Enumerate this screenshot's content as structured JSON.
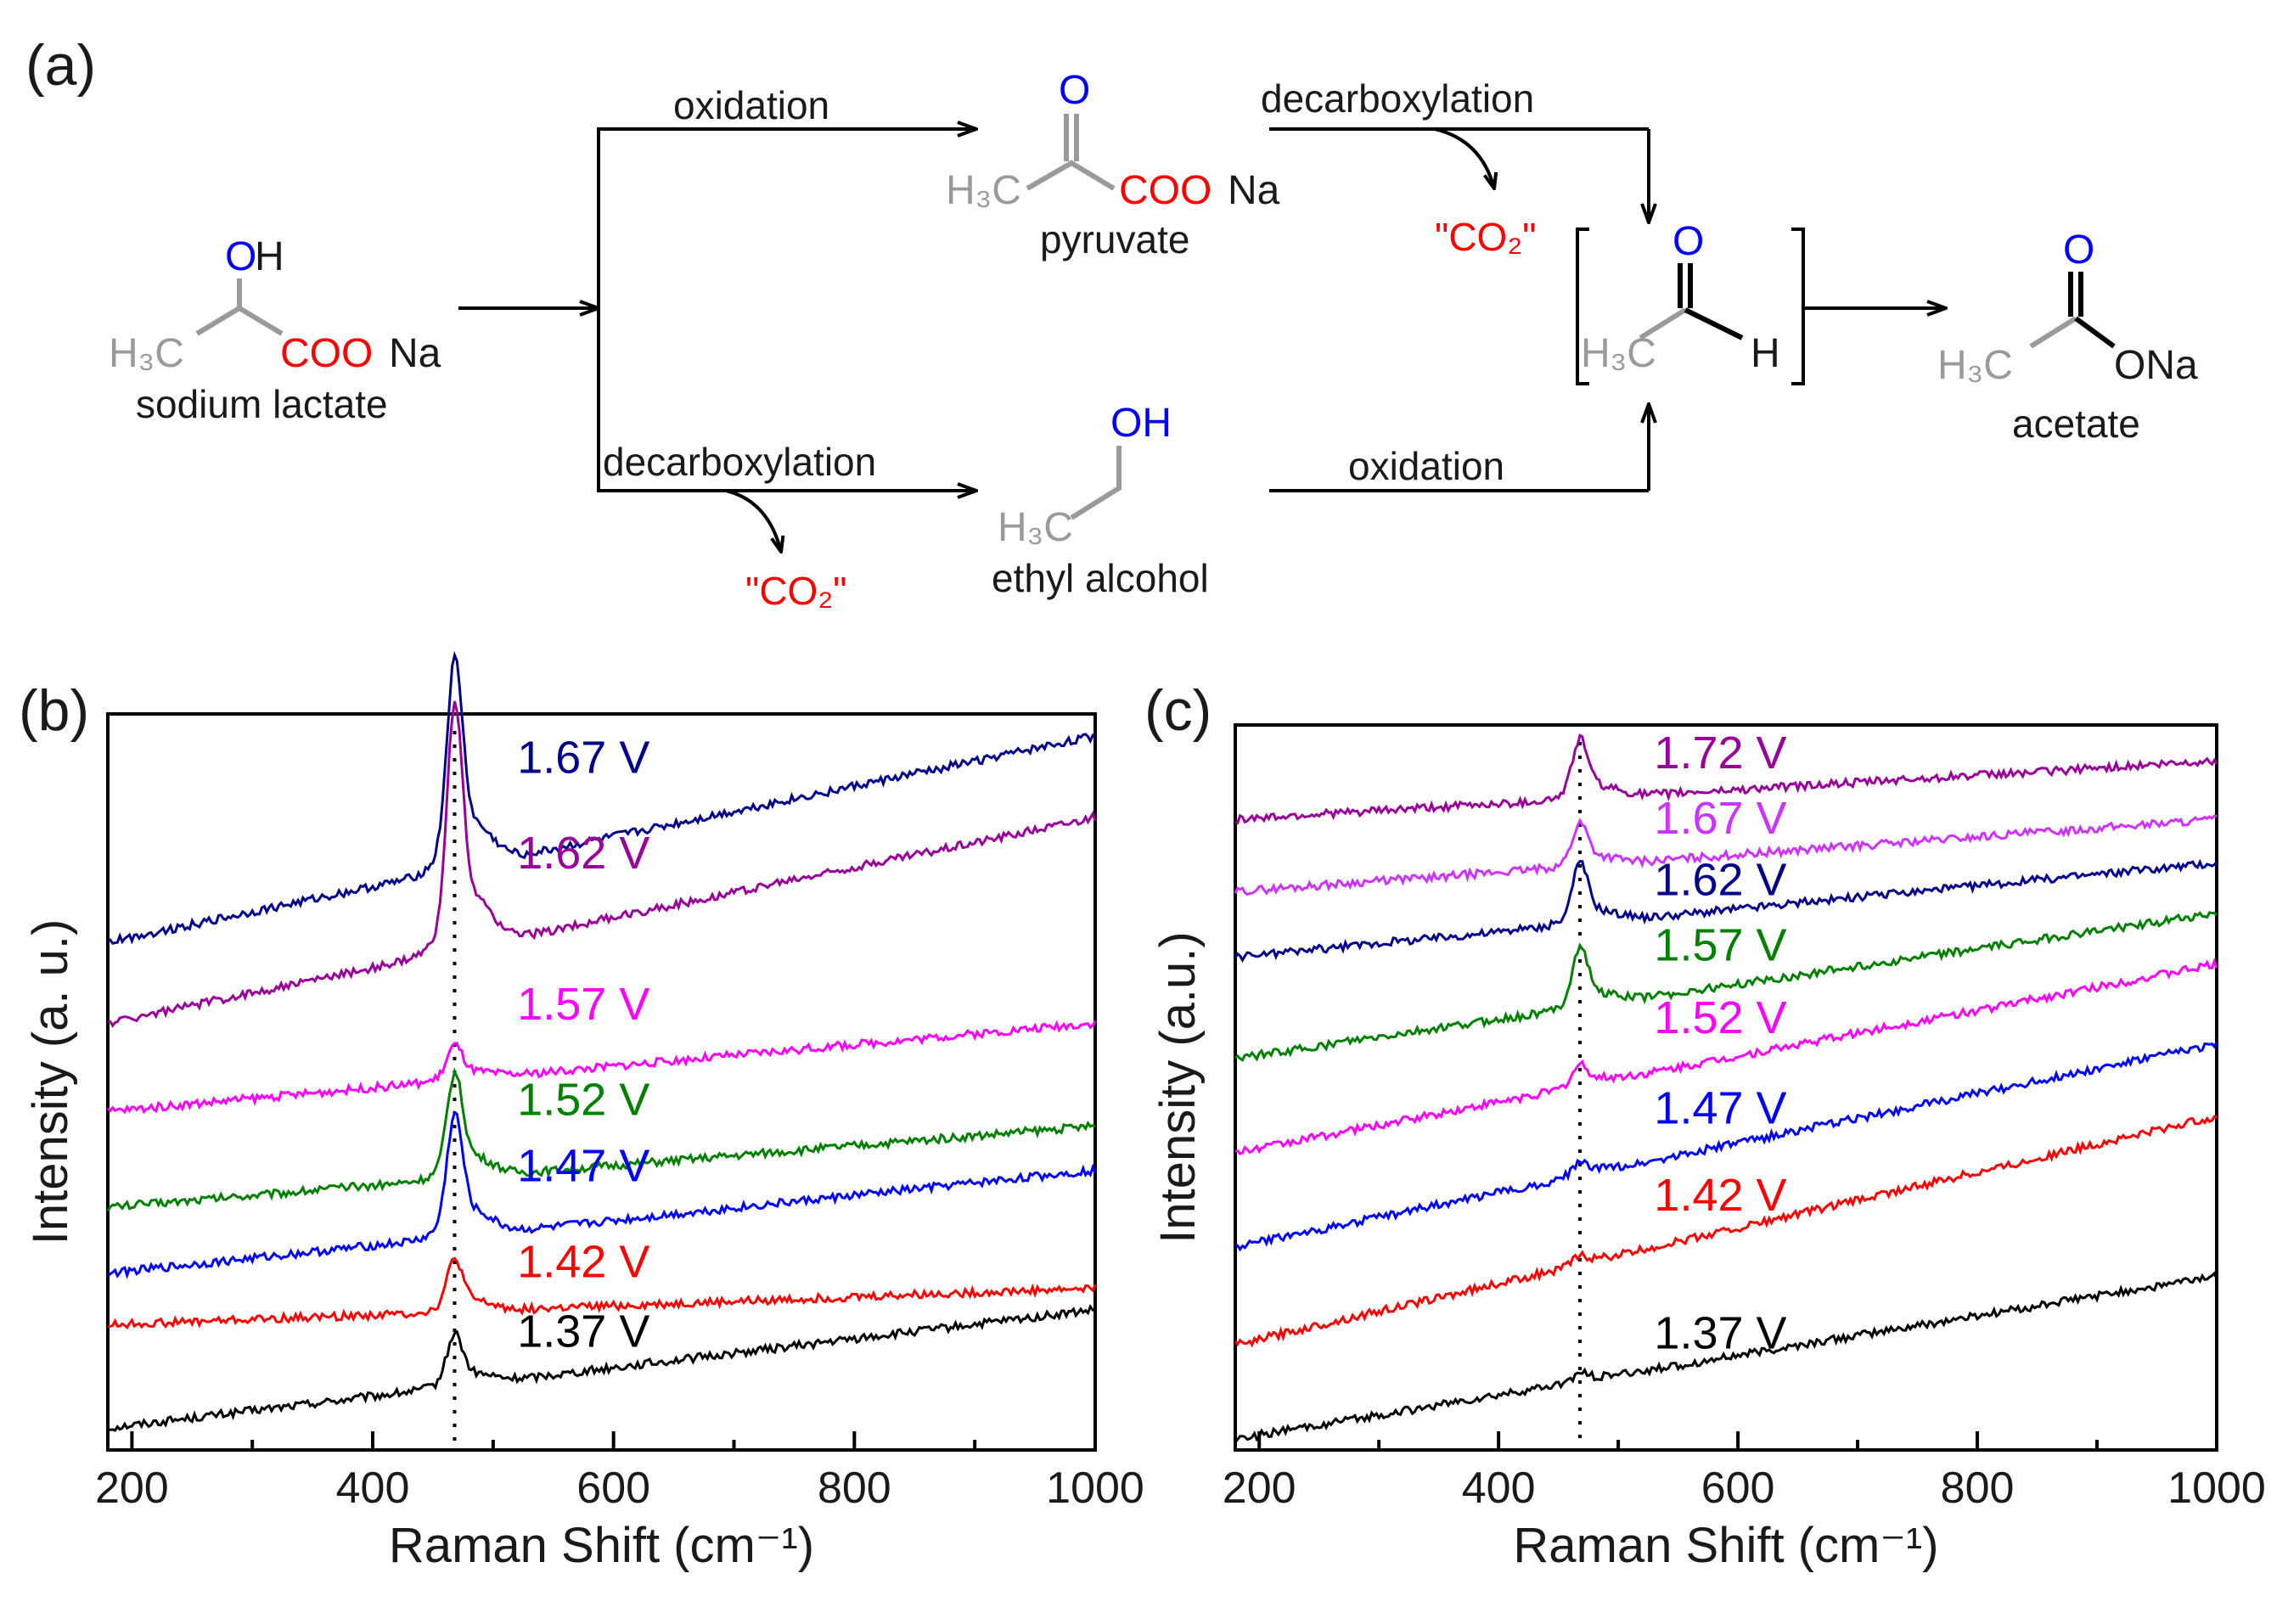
{
  "scheme": {
    "panel_label": "(a)",
    "lactate": {
      "oh": "O",
      "oh_h": "H",
      "h3c": "H₃C",
      "coo": "COO",
      "na": "Na",
      "name": "sodium lactate"
    },
    "pyruvate": {
      "o": "O",
      "h3c": "H₃C",
      "coo": "COO",
      "na": "Na",
      "name": "pyruvate"
    },
    "ethanol": {
      "oh": "OH",
      "h3c": "H₃C",
      "name": "ethyl alcohol"
    },
    "acetaldehyde": {
      "o": "O",
      "h3c": "H₃C",
      "h": "H"
    },
    "acetate": {
      "o": "O",
      "h3c": "H₃C",
      "ona": "ONa",
      "name": "acetate"
    },
    "labels": {
      "oxidation_top": "oxidation",
      "decarboxylation_top": "decarboxylation",
      "decarboxylation_bottom": "decarboxylation",
      "oxidation_bottom": "oxidation",
      "co2_top": "\"CO₂\"",
      "co2_bottom": "\"CO₂\""
    },
    "colors": {
      "gray": "#9a9a9a",
      "red": "#ff0000",
      "blue": "#0000ff",
      "black": "#1a1a1a"
    }
  },
  "chart_data": [
    {
      "panel": "(b)",
      "type": "line",
      "xlabel": "Raman Shift (cm⁻¹)",
      "ylabel": "Intensity (a. u.)",
      "xlim": [
        180,
        1000
      ],
      "ylim": [
        0,
        100
      ],
      "xticks": [
        200,
        400,
        600,
        800,
        1000
      ],
      "peak_marker_x": 468,
      "series": [
        {
          "name": "1.37 V",
          "color": "#000000",
          "start": 3,
          "end": 19,
          "peak_height": 6,
          "label_x": 520,
          "label_y": 14
        },
        {
          "name": "1.42 V",
          "color": "#ff0000",
          "start": 17,
          "end": 22,
          "peak_height": 6,
          "label_x": 520,
          "label_y": 23.5
        },
        {
          "name": "1.47 V",
          "color": "#0000ff",
          "start": 24,
          "end": 38,
          "peak_height": 14,
          "label_x": 520,
          "label_y": 36.5
        },
        {
          "name": "1.52 V",
          "color": "#008000",
          "start": 33,
          "end": 44,
          "peak_height": 12,
          "label_x": 520,
          "label_y": 45.5
        },
        {
          "name": "1.57 V",
          "color": "#ff00ff",
          "start": 46,
          "end": 58,
          "peak_height": 4,
          "label_x": 520,
          "label_y": 58.5
        },
        {
          "name": "1.62 V",
          "color": "#990099",
          "start": 58,
          "end": 86,
          "peak_height": 28,
          "label_x": 520,
          "label_y": 79
        },
        {
          "name": "1.67 V",
          "color": "#00008b",
          "start": 69,
          "end": 97,
          "peak_height": 24,
          "label_x": 520,
          "label_y": 92
        }
      ]
    },
    {
      "panel": "(c)",
      "type": "line",
      "xlabel": "Raman Shift (cm⁻¹)",
      "ylabel": "Intensity (a.u.)",
      "xlim": [
        180,
        1000
      ],
      "ylim": [
        0,
        100
      ],
      "xticks": [
        200,
        400,
        600,
        800,
        1000
      ],
      "peak_marker_x": 468,
      "series": [
        {
          "name": "1.37 V",
          "color": "#000000",
          "start": 1.5,
          "end": 24,
          "peak_height": 1,
          "label_x": 530,
          "label_y": 14
        },
        {
          "name": "1.42 V",
          "color": "#ff0000",
          "start": 14.5,
          "end": 46,
          "peak_height": 1,
          "label_x": 530,
          "label_y": 33
        },
        {
          "name": "1.47 V",
          "color": "#0000ff",
          "start": 28,
          "end": 56,
          "peak_height": 1.5,
          "label_x": 530,
          "label_y": 45
        },
        {
          "name": "1.52 V",
          "color": "#ff00ff",
          "start": 41,
          "end": 67,
          "peak_height": 2.5,
          "label_x": 530,
          "label_y": 57.5
        },
        {
          "name": "1.57 V",
          "color": "#008000",
          "start": 54,
          "end": 74,
          "peak_height": 7,
          "label_x": 530,
          "label_y": 67.5
        },
        {
          "name": "1.62 V",
          "color": "#00008b",
          "start": 68,
          "end": 81,
          "peak_height": 7,
          "label_x": 530,
          "label_y": 76.5
        },
        {
          "name": "1.67 V",
          "color": "#cc33ff",
          "start": 77,
          "end": 87,
          "peak_height": 5,
          "label_x": 530,
          "label_y": 85
        },
        {
          "name": "1.72 V",
          "color": "#990099",
          "start": 87,
          "end": 95,
          "peak_height": 7,
          "label_x": 530,
          "label_y": 94
        }
      ]
    }
  ]
}
